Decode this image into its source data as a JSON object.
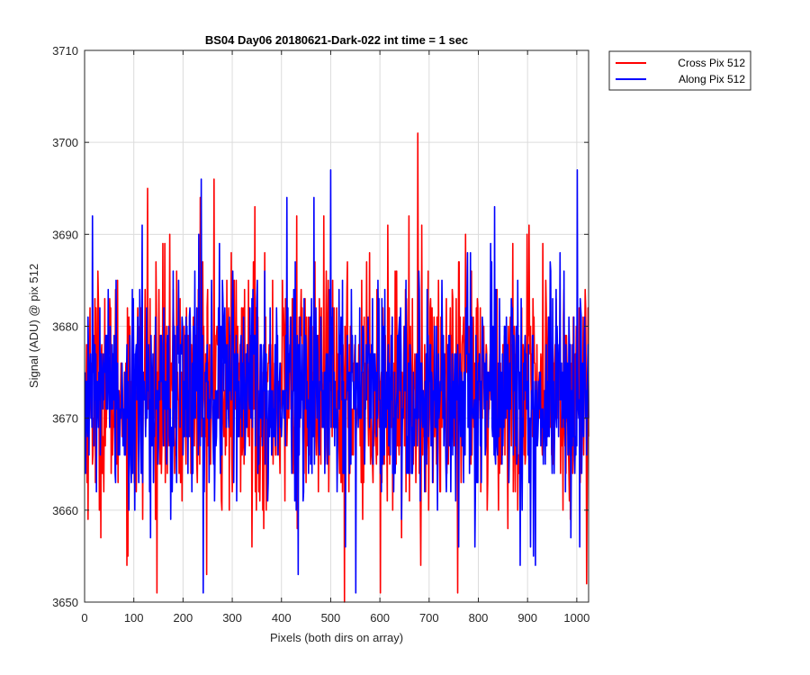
{
  "chart_data": {
    "type": "line",
    "title": "BS04 Day06 20180621-Dark-022 int time = 1 sec",
    "xlabel": "Pixels (both dirs on array)",
    "ylabel": "Signal (ADU) @ pix 512",
    "xlim": [
      0,
      1024
    ],
    "ylim": [
      3650,
      3710
    ],
    "xticks": [
      0,
      100,
      200,
      300,
      400,
      500,
      600,
      700,
      800,
      900,
      1000
    ],
    "yticks": [
      3650,
      3660,
      3670,
      3680,
      3690,
      3700,
      3710
    ],
    "grid": true,
    "legend_position": "outside-top-right",
    "n_points": 1024,
    "series": [
      {
        "name": "Cross Pix 512",
        "color": "#ff0000",
        "mean": 3673,
        "std": 6.5,
        "min": 3650,
        "max": 3701,
        "notable_points": [
          [
            127,
            3695
          ],
          [
            158,
            3689
          ],
          [
            234,
            3694
          ],
          [
            262,
            3696
          ],
          [
            345,
            3693
          ],
          [
            430,
            3692
          ],
          [
            527,
            3650
          ],
          [
            600,
            3651
          ],
          [
            676,
            3701
          ],
          [
            757,
            3651
          ],
          [
            1019,
            3652
          ]
        ]
      },
      {
        "name": "Along Pix 512",
        "color": "#0000ff",
        "mean": 3673,
        "std": 6.0,
        "min": 3651,
        "max": 3697,
        "notable_points": [
          [
            15,
            3692
          ],
          [
            236,
            3696
          ],
          [
            240,
            3651
          ],
          [
            410,
            3694
          ],
          [
            499,
            3697
          ],
          [
            550,
            3651
          ],
          [
            832,
            3693
          ],
          [
            915,
            3654
          ],
          [
            1000,
            3697
          ],
          [
            1005,
            3656
          ]
        ]
      }
    ]
  }
}
